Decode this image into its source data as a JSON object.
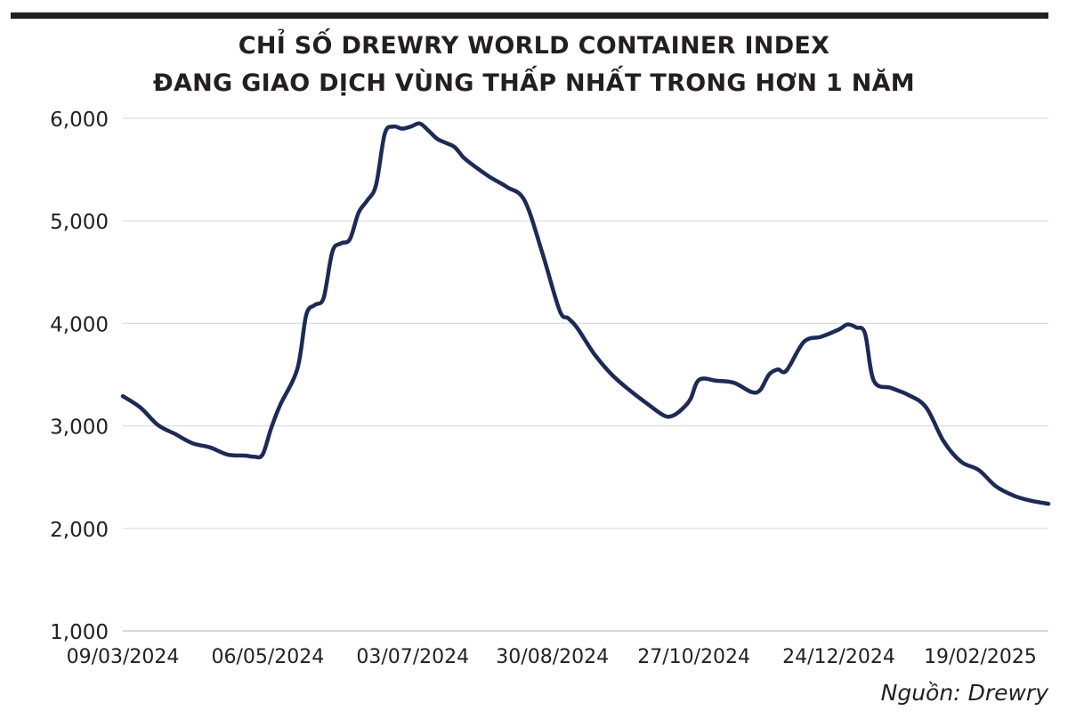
{
  "chart_data": {
    "type": "line",
    "title_line1": "CHỈ SỐ DREWRY WORLD CONTAINER INDEX",
    "title_line2": "ĐANG GIAO DỊCH VÙNG THẤP NHẤT TRONG HƠN 1 NĂM",
    "xlabel": "",
    "ylabel": "",
    "ylim": [
      1000,
      6000
    ],
    "y_ticks": [
      1000,
      2000,
      3000,
      4000,
      5000,
      6000
    ],
    "y_tick_labels": [
      "1,000",
      "2,000",
      "3,000",
      "4,000",
      "5,000",
      "6,000"
    ],
    "x_tick_labels": [
      "09/03/2024",
      "06/05/2024",
      "03/07/2024",
      "30/08/2024",
      "27/10/2024",
      "24/12/2024",
      "19/02/2025"
    ],
    "x_tick_weeks": [
      0,
      8.3,
      16.6,
      24.6,
      32.7,
      41,
      49.1
    ],
    "xlim": [
      0,
      53
    ],
    "grid": true,
    "legend": "none",
    "line_color": "#1b2a5a",
    "series": [
      {
        "name": "Drewry World Container Index",
        "x": [
          0,
          1,
          2,
          3,
          4,
          5,
          6,
          7,
          7.5,
          8,
          8.5,
          9,
          10,
          10.5,
          11,
          11.5,
          12,
          12.5,
          13,
          13.5,
          14,
          14.5,
          15,
          15.5,
          16,
          16.5,
          17,
          17.5,
          18,
          18.5,
          19,
          19.5,
          20,
          21,
          22,
          23,
          24,
          25,
          25.5,
          26,
          27,
          28,
          29,
          30,
          31,
          31.5,
          32,
          32.5,
          33,
          34,
          35,
          36,
          36.5,
          37,
          37.5,
          38,
          39,
          40,
          41,
          41.5,
          42,
          42.5,
          43,
          44,
          45,
          46,
          47,
          48,
          49,
          50,
          51,
          52,
          53
        ],
        "values": [
          3290,
          3180,
          3010,
          2920,
          2830,
          2790,
          2720,
          2710,
          2700,
          2720,
          2980,
          3200,
          3560,
          4080,
          4180,
          4250,
          4700,
          4780,
          4820,
          5080,
          5200,
          5350,
          5850,
          5920,
          5900,
          5920,
          5950,
          5880,
          5800,
          5760,
          5720,
          5620,
          5550,
          5430,
          5330,
          5200,
          4700,
          4130,
          4050,
          3960,
          3700,
          3500,
          3350,
          3220,
          3100,
          3100,
          3160,
          3260,
          3450,
          3440,
          3420,
          3330,
          3350,
          3500,
          3550,
          3540,
          3820,
          3870,
          3940,
          3990,
          3960,
          3900,
          3440,
          3370,
          3300,
          3180,
          2850,
          2650,
          2570,
          2410,
          2320,
          2270,
          2240
        ]
      }
    ]
  },
  "source": "Nguồn: Drewry"
}
